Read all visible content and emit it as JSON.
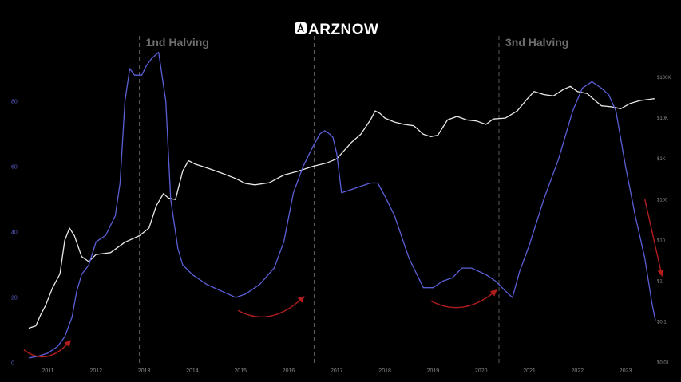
{
  "brand": {
    "name": "ARZNOW",
    "logo_icon": "arznow-logo-icon"
  },
  "chart_data": {
    "type": "line",
    "title": "",
    "xlabel": "",
    "ylabel": "",
    "x_range": [
      2010.5,
      2023.65
    ],
    "x_ticks": [
      "2011",
      "2012",
      "2013",
      "2014",
      "2015",
      "2016",
      "2017",
      "2018",
      "2019",
      "2020",
      "2021",
      "2022",
      "2023"
    ],
    "left_axis": {
      "ticks": [
        "0",
        "20",
        "40",
        "60",
        "80"
      ],
      "range": [
        0,
        100
      ]
    },
    "right_axis": {
      "scale": "log",
      "ticks": [
        "$0.01",
        "$0.1",
        "$1",
        "$10",
        "$100",
        "$1K",
        "$10K",
        "$100K"
      ],
      "range": [
        0.01,
        100000
      ]
    },
    "halvings": [
      {
        "x": 2012.9,
        "label": "1nd Halving"
      },
      {
        "x": 2016.53,
        "label": ""
      },
      {
        "x": 2020.37,
        "label": "3nd Halving"
      }
    ],
    "series": [
      {
        "name": "",
        "axis": "right",
        "color": "#e8e8e8",
        "x": [
          2010.6,
          2010.75,
          2010.85,
          2010.95,
          2011.1,
          2011.25,
          2011.35,
          2011.45,
          2011.55,
          2011.7,
          2011.85,
          2012.0,
          2012.3,
          2012.6,
          2012.9,
          2013.1,
          2013.25,
          2013.4,
          2013.5,
          2013.65,
          2013.8,
          2013.92,
          2014.05,
          2014.3,
          2014.6,
          2014.9,
          2015.1,
          2015.3,
          2015.6,
          2015.9,
          2016.2,
          2016.5,
          2016.8,
          2017.0,
          2017.3,
          2017.5,
          2017.7,
          2017.8,
          2017.9,
          2018.0,
          2018.2,
          2018.4,
          2018.6,
          2018.8,
          2018.95,
          2019.1,
          2019.3,
          2019.5,
          2019.7,
          2019.9,
          2020.1,
          2020.25,
          2020.5,
          2020.75,
          2020.95,
          2021.1,
          2021.3,
          2021.5,
          2021.7,
          2021.85,
          2022.0,
          2022.2,
          2022.4,
          2022.5,
          2022.7,
          2022.9,
          2023.1,
          2023.3,
          2023.5,
          2023.6
        ],
        "y": [
          0.07,
          0.08,
          0.15,
          0.25,
          0.7,
          1.5,
          10,
          20,
          13,
          4,
          3,
          4.5,
          5,
          9,
          13,
          20,
          70,
          140,
          110,
          100,
          500,
          900,
          750,
          600,
          450,
          330,
          250,
          230,
          260,
          400,
          500,
          650,
          800,
          1000,
          2500,
          4000,
          9000,
          15000,
          13000,
          10000,
          8000,
          7000,
          6500,
          4000,
          3500,
          3800,
          9000,
          11000,
          9000,
          8500,
          7000,
          9500,
          10000,
          15000,
          29000,
          45000,
          38000,
          35000,
          50000,
          60000,
          45000,
          40000,
          25000,
          20000,
          19000,
          17000,
          23000,
          27000,
          29000,
          30000
        ]
      },
      {
        "name": "",
        "axis": "left",
        "color": "#5b5fd6",
        "x": [
          2010.6,
          2010.8,
          2011.0,
          2011.2,
          2011.35,
          2011.5,
          2011.6,
          2011.7,
          2011.85,
          2012.0,
          2012.2,
          2012.4,
          2012.5,
          2012.6,
          2012.7,
          2012.8,
          2012.88,
          2012.95,
          2013.05,
          2013.15,
          2013.3,
          2013.45,
          2013.55,
          2013.7,
          2013.8,
          2014.0,
          2014.3,
          2014.6,
          2014.9,
          2015.1,
          2015.4,
          2015.7,
          2015.9,
          2016.1,
          2016.3,
          2016.5,
          2016.65,
          2016.75,
          2016.85,
          2016.92,
          2017.0,
          2017.1,
          2017.3,
          2017.5,
          2017.7,
          2017.85,
          2018.0,
          2018.2,
          2018.5,
          2018.8,
          2019.0,
          2019.2,
          2019.4,
          2019.6,
          2019.8,
          2020.1,
          2020.3,
          2020.5,
          2020.65,
          2020.8,
          2021.0,
          2021.3,
          2021.6,
          2021.9,
          2022.1,
          2022.3,
          2022.5,
          2022.65,
          2022.8,
          2023.0,
          2023.2,
          2023.4,
          2023.55,
          2023.62
        ],
        "y": [
          1.5,
          2,
          3,
          5,
          8,
          14,
          22,
          27,
          30,
          37,
          39,
          45,
          55,
          80,
          90,
          88,
          88,
          88,
          91,
          93,
          95,
          80,
          50,
          35,
          30,
          27,
          24,
          22,
          20,
          21,
          24,
          29,
          37,
          52,
          60,
          66,
          70,
          71,
          70,
          69,
          64,
          52,
          53,
          54,
          55,
          55,
          51,
          45,
          32,
          23,
          23,
          25,
          26,
          29,
          29,
          27,
          25,
          22,
          20,
          28,
          36,
          50,
          62,
          77,
          84,
          86,
          84,
          82,
          77,
          60,
          45,
          32,
          18,
          13
        ]
      }
    ],
    "annotations": [
      {
        "type": "arrow",
        "color": "#b01d1d",
        "direction": "up-right",
        "from": [
          2010.5,
          4
        ],
        "to": [
          2011.45,
          6.5
        ]
      },
      {
        "type": "arrow",
        "color": "#b01d1d",
        "direction": "up-right",
        "from": [
          2014.95,
          16
        ],
        "to": [
          2016.3,
          20
        ]
      },
      {
        "type": "arrow",
        "color": "#b01d1d",
        "direction": "up-right",
        "from": [
          2018.95,
          19
        ],
        "to": [
          2020.3,
          22
        ]
      },
      {
        "type": "arrow",
        "color": "#b01d1d",
        "direction": "down",
        "from": [
          2023.4,
          50
        ],
        "to": [
          2023.75,
          27
        ]
      }
    ]
  }
}
